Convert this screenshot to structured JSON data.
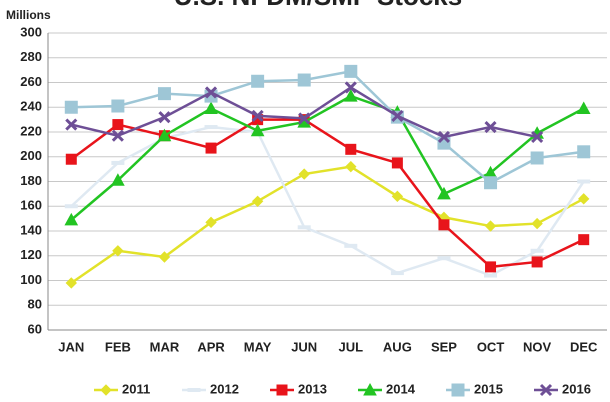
{
  "chart_data": {
    "type": "line",
    "title": "U.S. NFDM/SMP Stocks",
    "y_axis_label": "Millions",
    "categories": [
      "JAN",
      "FEB",
      "MAR",
      "APR",
      "MAY",
      "JUN",
      "JUL",
      "AUG",
      "SEP",
      "OCT",
      "NOV",
      "DEC"
    ],
    "ylim": [
      60,
      300
    ],
    "yticks": [
      60,
      80,
      100,
      120,
      140,
      160,
      180,
      200,
      220,
      240,
      260,
      280,
      300
    ],
    "grid": true,
    "series": [
      {
        "name": "2011",
        "color": "#e2e22a",
        "marker": "diamond",
        "values": [
          98,
          124,
          119,
          147,
          164,
          186,
          192,
          168,
          151,
          144,
          146,
          166
        ]
      },
      {
        "name": "2012",
        "color": "#dfe9f2",
        "marker": "dash",
        "values": [
          160,
          195,
          215,
          224,
          220,
          143,
          128,
          106,
          118,
          104,
          124,
          180
        ]
      },
      {
        "name": "2013",
        "color": "#e8141b",
        "marker": "square",
        "values": [
          198,
          226,
          217,
          207,
          230,
          230,
          206,
          195,
          145,
          111,
          115,
          133
        ]
      },
      {
        "name": "2014",
        "color": "#22c422",
        "marker": "triangle",
        "values": [
          149,
          181,
          217,
          239,
          221,
          228,
          249,
          236,
          170,
          187,
          219,
          239
        ]
      },
      {
        "name": "2015",
        "color": "#9ec6d6",
        "marker": "bigsquare",
        "values": [
          240,
          241,
          251,
          249,
          261,
          262,
          269,
          232,
          211,
          179,
          199,
          204
        ]
      },
      {
        "name": "2016",
        "color": "#6e4f96",
        "marker": "x",
        "values": [
          226,
          217,
          232,
          252,
          233,
          231,
          256,
          233,
          216,
          224,
          216,
          null
        ]
      }
    ]
  }
}
